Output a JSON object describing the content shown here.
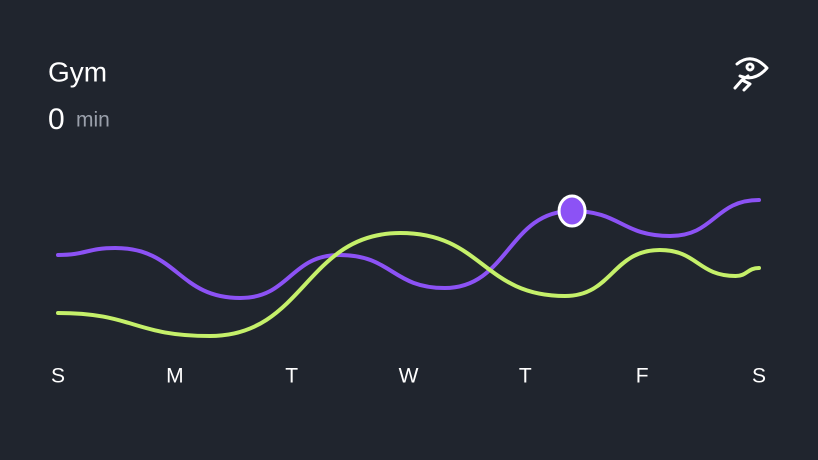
{
  "header": {
    "title": "Gym",
    "value": "0",
    "unit": "min"
  },
  "chart_data": {
    "type": "line",
    "xlim": [
      0,
      6
    ],
    "ylim": [
      0,
      100
    ],
    "xticks": [
      {
        "value": 0,
        "label": "S"
      },
      {
        "value": 1,
        "label": "M"
      },
      {
        "value": 2,
        "label": "T"
      },
      {
        "value": 3,
        "label": "W"
      },
      {
        "value": 4,
        "label": "T"
      },
      {
        "value": 5,
        "label": "F"
      },
      {
        "value": 6,
        "label": "S"
      }
    ],
    "series": [
      {
        "color": "#8c52f5",
        "x": [
          0,
          0.49,
          1.56,
          2.41,
          3.31,
          4.4,
          5.24,
          6
        ],
        "values": [
          52.5,
          56,
          31,
          52.5,
          36,
          74.5,
          62,
          80
        ],
        "highlight_index": 5
      },
      {
        "color": "#c5f06a",
        "x": [
          0,
          1.3,
          2.93,
          4.34,
          5.15,
          5.8,
          6
        ],
        "values": [
          23.5,
          12,
          63.5,
          32,
          55,
          42,
          46
        ]
      }
    ]
  }
}
